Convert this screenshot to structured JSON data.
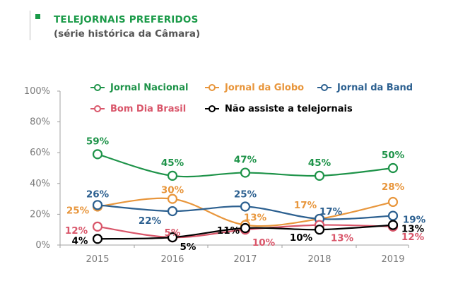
{
  "header": {
    "title": "TELEJORNAIS PREFERIDOS",
    "subtitle": "(série histórica da Câmara)"
  },
  "chart_data": {
    "type": "line",
    "title": "TELEJORNAIS PREFERIDOS",
    "subtitle": "(série histórica da Câmara)",
    "xlabel": "",
    "ylabel": "",
    "x": [
      "2015",
      "2016",
      "2017",
      "2018",
      "2019"
    ],
    "ylim": [
      0,
      100
    ],
    "yticks": [
      "0%",
      "20%",
      "40%",
      "60%",
      "80%",
      "100%"
    ],
    "grid": false,
    "legend_position": "top",
    "series": [
      {
        "name": "Jornal Nacional",
        "color": "#1e9349",
        "values": [
          59,
          45,
          47,
          45,
          50
        ],
        "labels": [
          "59%",
          "45%",
          "47%",
          "45%",
          "50%"
        ]
      },
      {
        "name": "Jornal da Globo",
        "color": "#e8963c",
        "values": [
          25,
          30,
          13,
          17,
          28
        ],
        "labels": [
          "25%",
          "30%",
          "13%",
          "17%",
          "28%"
        ]
      },
      {
        "name": "Jornal da Band",
        "color": "#2c6090",
        "values": [
          26,
          22,
          25,
          17,
          19
        ],
        "labels": [
          "26%",
          "22%",
          "25%",
          "17%",
          "19%"
        ]
      },
      {
        "name": "Bom Dia Brasil",
        "color": "#d9566a",
        "values": [
          12,
          5,
          10,
          13,
          12
        ],
        "labels": [
          "12%",
          "5%",
          "10%",
          "13%",
          "12%"
        ]
      },
      {
        "name": "Não assiste a telejornais",
        "color": "#000000",
        "values": [
          4,
          5,
          11,
          10,
          13
        ],
        "labels": [
          "4%",
          "5%",
          "11%",
          "10%",
          "13%"
        ]
      }
    ]
  }
}
